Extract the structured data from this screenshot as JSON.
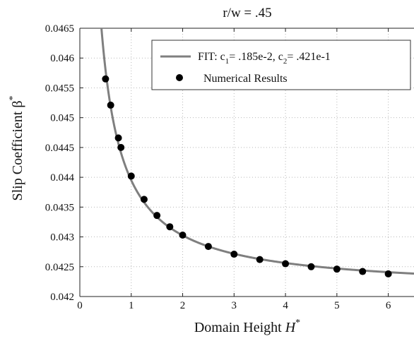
{
  "chart_data": {
    "type": "line",
    "title": "r/w = .45",
    "xlabel": {
      "text": "Domain Height ",
      "italic": "H",
      "sup": "*"
    },
    "ylabel": {
      "text": "Slip Coefficient  β",
      "sup": "*"
    },
    "xlim": [
      0,
      6.5
    ],
    "ylim": [
      0.042,
      0.0465
    ],
    "x_ticks": [
      0,
      1,
      2,
      3,
      4,
      5,
      6
    ],
    "y_ticks": [
      "0.042",
      "0.0425",
      "0.043",
      "0.0435",
      "0.044",
      "0.0445",
      "0.045",
      "0.0455",
      "0.046",
      "0.0465"
    ],
    "grid": true,
    "legend_position": "top-right",
    "series": [
      {
        "name": "FIT",
        "kind": "fitted-curve",
        "model": "y = c2 + c1 / x",
        "c1": 0.00185,
        "c2": 0.0421,
        "label_parts": [
          "FIT:   c",
          "1",
          "= .185e-2,      c",
          "2",
          "= .421e-1"
        ],
        "color": "#7f7f7f"
      },
      {
        "name": "Numerical Results",
        "kind": "scatter",
        "color": "#000000",
        "x": [
          0.5,
          0.6,
          0.75,
          0.8,
          1.0,
          1.25,
          1.5,
          1.75,
          2.0,
          2.5,
          3.0,
          3.5,
          4.0,
          4.5,
          5.0,
          5.5,
          6.0
        ],
        "y": [
          0.04565,
          0.04521,
          0.04466,
          0.0445,
          0.04402,
          0.04363,
          0.04336,
          0.04317,
          0.04303,
          0.04284,
          0.04271,
          0.04262,
          0.04255,
          0.0425,
          0.04246,
          0.04242,
          0.04238
        ]
      }
    ]
  }
}
